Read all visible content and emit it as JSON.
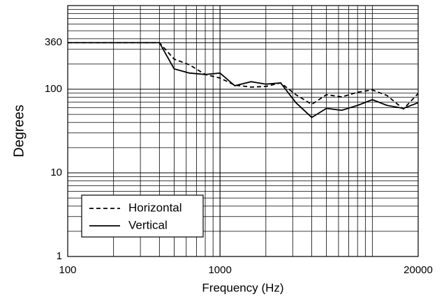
{
  "chart_data": {
    "type": "line",
    "x_label": "Frequency (Hz)",
    "y_label": "Degrees",
    "x": [
      100,
      400,
      500,
      630,
      800,
      1000,
      1250,
      1600,
      2000,
      2500,
      3150,
      4000,
      5000,
      6300,
      8000,
      10000,
      12500,
      16000,
      20000
    ],
    "series": [
      {
        "name": "Horizontal",
        "color": "#000000",
        "dashed": true,
        "values": [
          360,
          360,
          229,
          196,
          150,
          136,
          112,
          106,
          108,
          119,
          86,
          66,
          86,
          81,
          92,
          98,
          84,
          58,
          89
        ]
      },
      {
        "name": "Vertical",
        "color": "#000000",
        "dashed": false,
        "values": [
          360,
          360,
          175,
          156,
          150,
          156,
          110,
          123,
          115,
          119,
          69,
          46,
          59,
          56,
          64,
          75,
          64,
          59,
          69
        ]
      }
    ],
    "xlim": [
      100,
      20000
    ],
    "xticks": [
      100,
      1000,
      20000
    ],
    "ylim": [
      1,
      1000
    ],
    "yticks": [
      1,
      10,
      100,
      360
    ],
    "x_log": true,
    "y_log": true,
    "grid": true,
    "legend": "lower left"
  }
}
